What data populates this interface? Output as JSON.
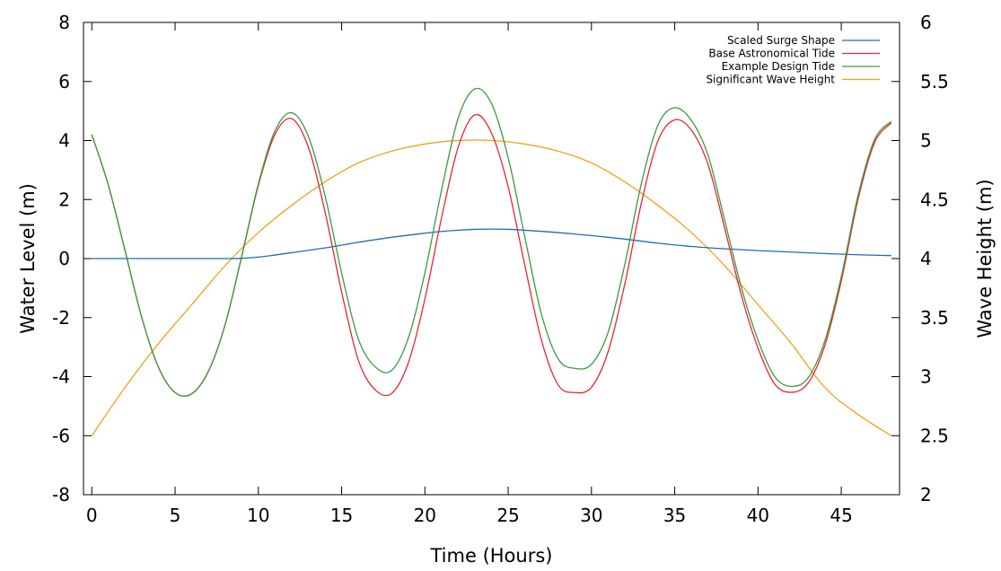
{
  "chart_data": {
    "type": "line",
    "xlabel": "Time (Hours)",
    "ylabel": "Water Level (m)",
    "y2label": "Wave Height (m)",
    "xlim": [
      -0.5,
      48.5
    ],
    "ylim": [
      -8,
      8
    ],
    "y2lim": [
      2,
      6
    ],
    "xticks": [
      "0",
      "5",
      "10",
      "15",
      "20",
      "25",
      "30",
      "35",
      "40",
      "45"
    ],
    "yticks": [
      "-8",
      "-6",
      "-4",
      "-2",
      "0",
      "2",
      "4",
      "6",
      "8"
    ],
    "y2ticks": [
      "2",
      "2.5",
      "3",
      "3.5",
      "4",
      "4.5",
      "5",
      "5.5",
      "6"
    ],
    "grid": false,
    "legend_position": "top-right",
    "series": [
      {
        "name": "Scaled Surge Shape",
        "axis": "left",
        "color": "#1f6db5",
        "x": [
          0,
          2,
          4,
          6,
          8,
          9,
          10,
          11,
          12,
          14,
          16,
          18,
          20,
          21,
          22,
          23,
          24,
          25,
          26,
          28,
          30,
          32,
          34,
          36,
          38,
          40,
          42,
          44,
          46,
          48
        ],
        "values": [
          0,
          0,
          0,
          0,
          0,
          0.01,
          0.05,
          0.12,
          0.2,
          0.36,
          0.55,
          0.72,
          0.86,
          0.92,
          0.96,
          0.99,
          1.0,
          0.99,
          0.96,
          0.88,
          0.78,
          0.66,
          0.52,
          0.41,
          0.33,
          0.27,
          0.22,
          0.17,
          0.13,
          0.1
        ]
      },
      {
        "name": "Base Astronomical Tide",
        "axis": "left",
        "color": "#e8262e",
        "x": [
          0,
          1,
          2,
          3,
          4,
          5,
          6,
          7,
          8,
          9,
          10,
          11,
          12,
          13,
          14,
          15,
          16,
          17,
          18,
          19,
          20,
          21,
          22,
          23,
          24,
          25,
          26,
          27,
          28,
          29,
          30,
          31,
          32,
          33,
          34,
          35,
          36,
          37,
          38,
          39,
          40,
          41,
          42,
          43,
          44,
          45,
          46,
          47,
          48
        ],
        "values": [
          4.2,
          2.47,
          0.26,
          -2.0,
          -3.68,
          -4.54,
          -4.58,
          -3.82,
          -2.25,
          0.07,
          2.48,
          4.21,
          4.74,
          3.78,
          1.59,
          -1.13,
          -3.44,
          -4.44,
          -4.57,
          -3.54,
          -1.37,
          1.38,
          3.78,
          4.87,
          4.25,
          2.43,
          -0.23,
          -2.77,
          -4.28,
          -4.54,
          -4.36,
          -3.16,
          -0.87,
          1.89,
          4.0,
          4.7,
          4.35,
          3.19,
          1.03,
          -1.24,
          -3.03,
          -4.25,
          -4.53,
          -4.22,
          -2.97,
          -0.76,
          1.99,
          3.93,
          4.6
        ]
      },
      {
        "name": "Example Design Tide",
        "axis": "left",
        "color": "#3c9a3c",
        "x": [
          0,
          1,
          2,
          3,
          4,
          5,
          6,
          7,
          8,
          9,
          10,
          11,
          12,
          13,
          14,
          15,
          16,
          17,
          18,
          19,
          20,
          21,
          22,
          23,
          24,
          25,
          26,
          27,
          28,
          29,
          30,
          31,
          32,
          33,
          34,
          35,
          36,
          37,
          38,
          39,
          40,
          41,
          42,
          43,
          44,
          45,
          46,
          47,
          48
        ],
        "values": [
          4.2,
          2.47,
          0.26,
          -2.0,
          -3.68,
          -4.54,
          -4.58,
          -3.82,
          -2.25,
          0.08,
          2.53,
          4.33,
          4.94,
          4.14,
          2.14,
          -0.49,
          -2.72,
          -3.66,
          -3.79,
          -2.7,
          -0.48,
          2.32,
          4.76,
          5.75,
          5.25,
          3.42,
          0.73,
          -1.89,
          -3.4,
          -3.72,
          -3.58,
          -2.5,
          -0.21,
          2.55,
          4.53,
          5.11,
          4.68,
          3.5,
          1.3,
          -0.98,
          -2.76,
          -4.0,
          -4.33,
          -4.05,
          -2.81,
          -0.62,
          2.12,
          4.03,
          4.65
        ]
      },
      {
        "name": "Significant Wave Height",
        "axis": "right",
        "color": "#f5a11c",
        "x": [
          0,
          2,
          4,
          6,
          8,
          10,
          12,
          14,
          16,
          18,
          20,
          22,
          24,
          26,
          28,
          30,
          32,
          34,
          36,
          38,
          40,
          42,
          44,
          46,
          48
        ],
        "values": [
          2.5,
          2.91,
          3.28,
          3.61,
          3.94,
          4.22,
          4.45,
          4.65,
          4.81,
          4.91,
          4.97,
          5.0,
          5.0,
          4.97,
          4.91,
          4.81,
          4.65,
          4.45,
          4.22,
          3.94,
          3.61,
          3.28,
          2.91,
          2.68,
          2.5
        ]
      }
    ]
  }
}
